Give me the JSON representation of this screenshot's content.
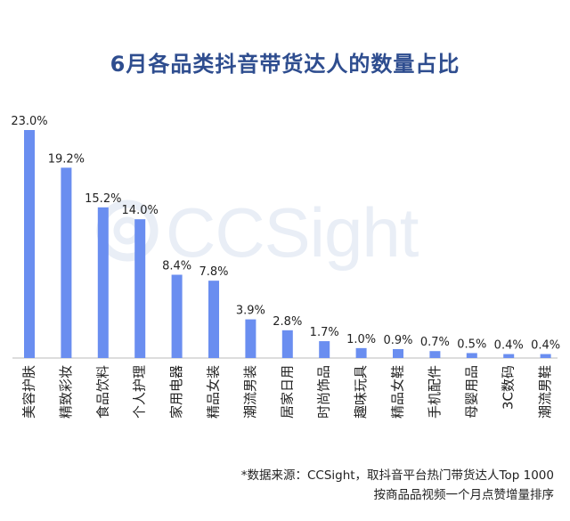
{
  "title": "6月各品类抖音带货达人的数量占比",
  "watermark": "CCSight",
  "source": {
    "line1": "*数据来源：CCSight，取抖音平台热门带货达人Top 1000",
    "line2": "按商品品视频一个月点赞增量排序"
  },
  "colors": {
    "bar": "#6a8ef0",
    "title": "#2e4d8f",
    "axis": "#bbbbbb"
  },
  "chart_data": {
    "type": "bar",
    "title": "6月各品类抖音带货达人的数量占比",
    "categories": [
      "美容护肤",
      "精致彩妆",
      "食品饮料",
      "个人护理",
      "家用电器",
      "精品女装",
      "潮流男装",
      "居家日用",
      "时尚饰品",
      "趣味玩具",
      "精品女鞋",
      "手机配件",
      "母婴用品",
      "3C数码",
      "潮流男鞋"
    ],
    "values": [
      23.0,
      19.2,
      15.2,
      14.0,
      8.4,
      7.8,
      3.9,
      2.8,
      1.7,
      1.0,
      0.9,
      0.7,
      0.5,
      0.4,
      0.4
    ],
    "value_labels": [
      "23.0%",
      "19.2%",
      "15.2%",
      "14.0%",
      "8.4%",
      "7.8%",
      "3.9%",
      "2.8%",
      "1.7%",
      "1.0%",
      "0.9%",
      "0.7%",
      "0.5%",
      "0.4%",
      "0.4%"
    ],
    "unit": "%",
    "xlabel": "",
    "ylabel": "",
    "ylim": [
      0,
      23.0
    ],
    "grid": false,
    "legend": "none"
  }
}
